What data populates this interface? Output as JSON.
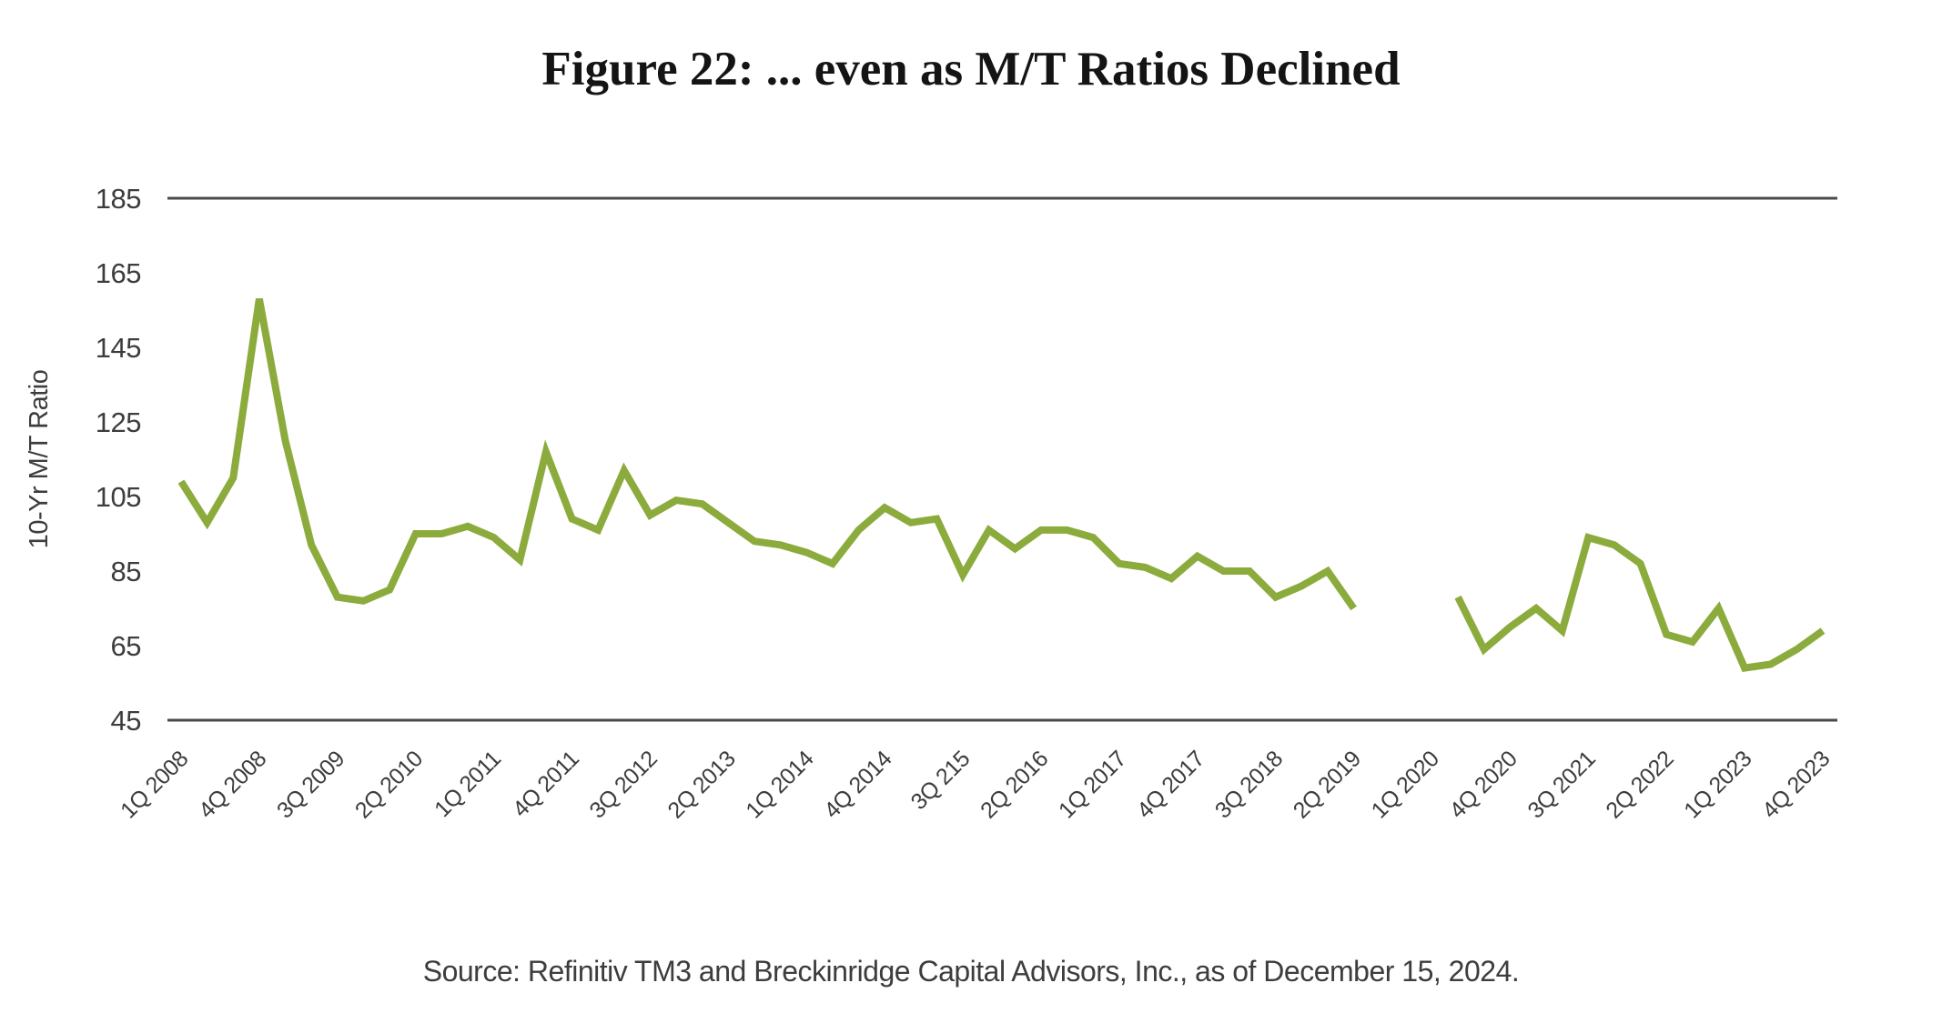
{
  "title": "Figure 22: ... even as M/T Ratios Declined",
  "source": "Source: Refinitiv TM3 and Breckinridge Capital Advisors, Inc., as of December 15, 2024.",
  "colors": {
    "line": "#8cab3d",
    "axis": "#4a4a49",
    "tick_text": "#3d3d3c",
    "title_text": "#141414"
  },
  "chart_data": {
    "type": "line",
    "title": "Figure 22: ... even as M/T Ratios Declined",
    "xlabel": "",
    "ylabel": "10-Yr M/T Ratio",
    "ylim": [
      45,
      185
    ],
    "yticks": [
      45,
      65,
      85,
      105,
      125,
      145,
      165,
      185
    ],
    "gridlines": "top-and-bottom-only",
    "legend": "none",
    "line_color": "#8cab3d",
    "x_tick_every": 3,
    "x_tick_labels": [
      "1Q 2008",
      "4Q 2008",
      "3Q 2009",
      "2Q 2010",
      "1Q 2011",
      "4Q 2011",
      "3Q 2012",
      "2Q 2013",
      "1Q 2014",
      "4Q 2014",
      "3Q 215",
      "2Q 2016",
      "1Q 2017",
      "4Q 2017",
      "3Q 2018",
      "2Q 2019",
      "1Q 2020",
      "4Q 2020",
      "3Q 2021",
      "2Q 2022",
      "1Q 2023",
      "4Q 2023"
    ],
    "categories": [
      "1Q 2008",
      "2Q 2008",
      "3Q 2008",
      "4Q 2008",
      "1Q 2009",
      "2Q 2009",
      "3Q 2009",
      "4Q 2009",
      "1Q 2010",
      "2Q 2010",
      "3Q 2010",
      "4Q 2010",
      "1Q 2011",
      "2Q 2011",
      "3Q 2011",
      "4Q 2011",
      "1Q 2012",
      "2Q 2012",
      "3Q 2012",
      "4Q 2012",
      "1Q 2013",
      "2Q 2013",
      "3Q 2013",
      "4Q 2013",
      "1Q 2014",
      "2Q 2014",
      "3Q 2014",
      "4Q 2014",
      "1Q 2015",
      "2Q 2015",
      "3Q 2015",
      "4Q 2015",
      "1Q 2016",
      "2Q 2016",
      "3Q 2016",
      "4Q 2016",
      "1Q 2017",
      "2Q 2017",
      "3Q 2017",
      "4Q 2017",
      "1Q 2018",
      "2Q 2018",
      "3Q 2018",
      "4Q 2018",
      "1Q 2019",
      "2Q 2019",
      "3Q 2019",
      "4Q 2019",
      "1Q 2020",
      "2Q 2020",
      "3Q 2020",
      "4Q 2020",
      "1Q 2021",
      "2Q 2021",
      "3Q 2021",
      "4Q 2021",
      "1Q 2022",
      "2Q 2022",
      "3Q 2022",
      "4Q 2022",
      "1Q 2023",
      "2Q 2023",
      "3Q 2023",
      "4Q 2023"
    ],
    "values": [
      109,
      98,
      110,
      158,
      120,
      92,
      78,
      77,
      80,
      95,
      95,
      97,
      94,
      88,
      117,
      99,
      96,
      112,
      100,
      104,
      103,
      98,
      93,
      92,
      90,
      87,
      96,
      102,
      98,
      99,
      84,
      96,
      91,
      96,
      96,
      94,
      87,
      86,
      83,
      89,
      85,
      85,
      78,
      81,
      85,
      75,
      null,
      null,
      null,
      78,
      64,
      70,
      75,
      69,
      94,
      92,
      87,
      68,
      66,
      75,
      59,
      60,
      64,
      69
    ]
  }
}
